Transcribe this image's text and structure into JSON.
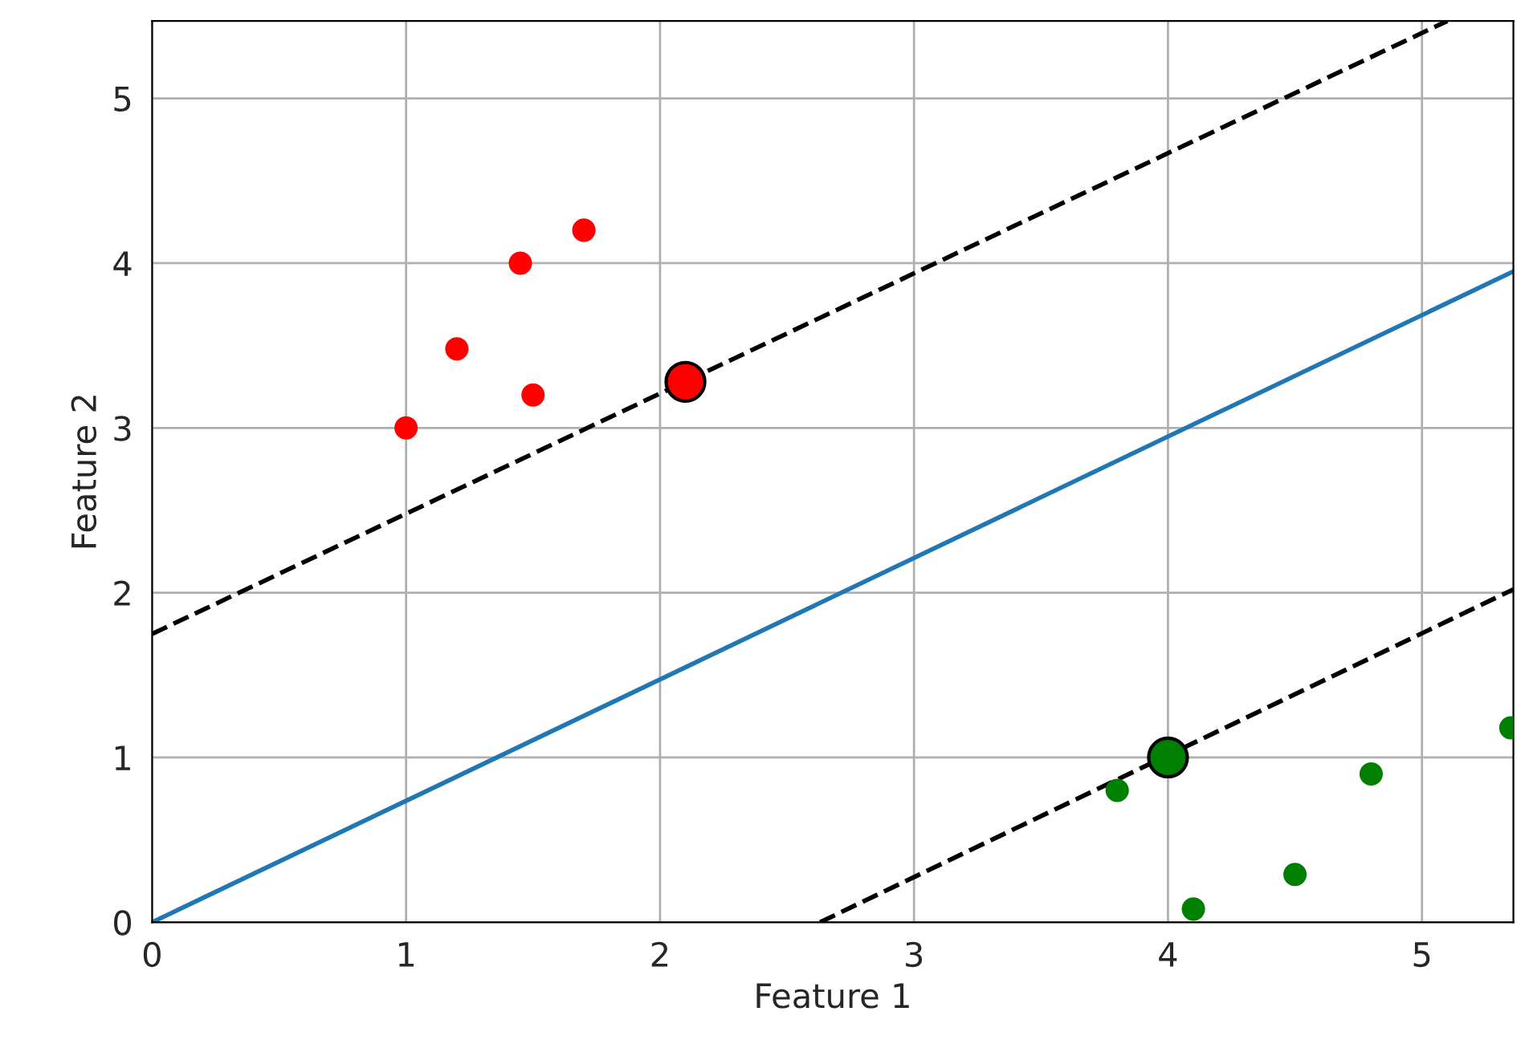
{
  "chart_data": {
    "type": "scatter",
    "xlabel": "Feature 1",
    "ylabel": "Feature 2",
    "xlim": [
      0,
      5.36
    ],
    "ylim": [
      0,
      5.47
    ],
    "xticks": [
      0,
      1,
      2,
      3,
      4,
      5
    ],
    "yticks": [
      0,
      1,
      2,
      3,
      4,
      5
    ],
    "grid": true,
    "series": [
      {
        "color": "#ff0000",
        "marker": "circle",
        "x": [
          1,
          1.2,
          1.45,
          1.7,
          1.5
        ],
        "values": [
          3,
          3.48,
          4.0,
          4.2,
          3.2
        ]
      },
      {
        "color": "#008000",
        "marker": "circle",
        "x": [
          3.8,
          4.1,
          4.5,
          4.8,
          5.35
        ],
        "values": [
          0.8,
          0.08,
          0.29,
          0.9,
          1.18
        ]
      },
      {
        "type": "bubble",
        "color": "#ff0000",
        "marker": "circle",
        "x": [
          2.1
        ],
        "values": [
          3.28
        ],
        "sizes": [
          1
        ]
      },
      {
        "type": "bubble",
        "color": "#008000",
        "marker": "circle",
        "x": [
          4.0
        ],
        "values": [
          1.0
        ],
        "sizes": [
          1
        ]
      },
      {
        "type": "line",
        "color": "#1f77b4",
        "line_style": "solid",
        "x": [
          0,
          5.36
        ],
        "values": [
          0,
          3.95
        ]
      },
      {
        "type": "line",
        "color": "#000000",
        "line_style": "dashed",
        "x": [
          0,
          5.1
        ],
        "values": [
          1.75,
          5.47
        ]
      },
      {
        "type": "line",
        "color": "#000000",
        "line_style": "dashed",
        "x": [
          2.63,
          5.36
        ],
        "values": [
          0,
          2.02
        ]
      }
    ]
  }
}
